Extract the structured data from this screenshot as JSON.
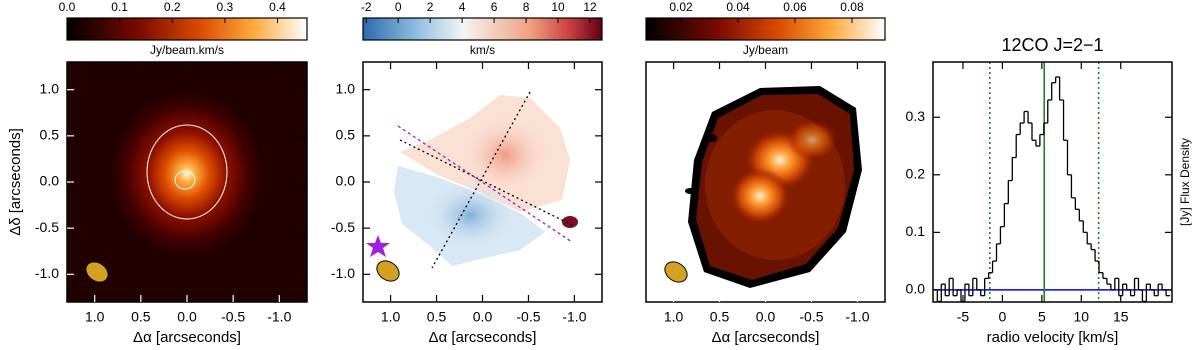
{
  "chart_data": [
    {
      "type": "image",
      "colorbar": {
        "label": "Jy/beam.km/s",
        "colormap": "heat",
        "clim": [
          0,
          0.456
        ],
        "ticks": [
          {
            "value": 0,
            "label": "0.0"
          },
          0.1,
          0.2,
          0.3,
          0.4
        ]
      },
      "xlabel": "Δα  [arcseconds]",
      "ylabel": "Δδ  [arcseconds]",
      "xlim": [
        1.3,
        -1.3
      ],
      "ylim": [
        -1.3,
        1.3
      ],
      "xticks": [
        {
          "value": 1,
          "label": "1.0"
        },
        0.5,
        {
          "value": 0,
          "label": "0.0"
        },
        -0.5,
        {
          "value": -1,
          "label": "-1.0"
        }
      ],
      "yticks": [
        {
          "value": -1,
          "label": "-1.0"
        },
        -0.5,
        {
          "value": 0,
          "label": "0.0"
        },
        0.5,
        {
          "value": 1,
          "label": "1.0"
        }
      ]
    },
    {
      "type": "image",
      "colorbar": {
        "label": "km/s",
        "colormap": "redblue",
        "clim": [
          -2.2,
          12.75
        ],
        "ticks": [
          -2,
          0,
          2,
          4,
          6,
          8,
          10,
          12
        ]
      },
      "xlabel": "Δα  [arcseconds]",
      "xlim": [
        1.3,
        -1.3
      ],
      "ylim": [
        -1.3,
        1.3
      ],
      "xticks": [
        {
          "value": 1,
          "label": "1.0"
        },
        0.5,
        {
          "value": 0,
          "label": "0.0"
        },
        -0.5,
        {
          "value": -1,
          "label": "-1.0"
        }
      ],
      "yticks": [
        {
          "value": -1,
          "label": "-1.0"
        },
        -0.5,
        {
          "value": 0,
          "label": "0.0"
        },
        0.5,
        {
          "value": 1,
          "label": "1.0"
        }
      ]
    },
    {
      "type": "image",
      "colorbar": {
        "label": "Jy/beam",
        "colormap": "heat",
        "clim": [
          0.0077,
          0.0916
        ],
        "ticks": [
          0.02,
          0.04,
          0.06,
          0.08
        ]
      },
      "xlabel": "Δα  [arcseconds]",
      "xlim": [
        1.3,
        -1.3
      ],
      "ylim": [
        -1.3,
        1.3
      ],
      "xticks": [
        {
          "value": 1,
          "label": "1.0"
        },
        0.5,
        {
          "value": 0,
          "label": "0.0"
        },
        -0.5,
        {
          "value": -1,
          "label": "-1.0"
        }
      ]
    },
    {
      "type": "step",
      "title": "12CO J=2−1",
      "xlabel": "radio velocity [km/s]",
      "ylabel": "[Jy] Flux Density",
      "xlim": [
        -8.8,
        21.5
      ],
      "ylim": [
        -0.021,
        0.396
      ],
      "xticks": [
        -5,
        0,
        5,
        10,
        15
      ],
      "yticks": [
        {
          "value": 0,
          "label": "0.0"
        },
        0.1,
        0.2,
        0.3
      ],
      "color": "#000000",
      "x": [
        -8.5,
        -8,
        -7.5,
        -7,
        -6.5,
        -6,
        -5.5,
        -5,
        -4.5,
        -4,
        -3.5,
        -3,
        -2.5,
        -2,
        -1.5,
        -1,
        -0.5,
        0,
        0.5,
        1,
        1.5,
        2,
        2.5,
        3,
        3.5,
        4,
        4.5,
        5,
        5.5,
        6,
        6.5,
        7,
        7.5,
        8,
        8.5,
        9,
        9.5,
        10,
        10.5,
        11,
        11.5,
        12,
        12.5,
        13,
        13.5,
        14,
        14.5,
        15,
        15.5,
        16,
        16.5,
        17,
        17.5,
        18,
        18.5,
        19,
        19.5,
        20,
        20.5,
        21
      ],
      "values": [
        0,
        -0.02,
        0.01,
        -0.01,
        0.02,
        -0.01,
        0,
        -0.02,
        0.01,
        -0.01,
        0.02,
        0,
        -0.01,
        0.02,
        0.03,
        0.05,
        0.08,
        0.11,
        0.15,
        0.19,
        0.23,
        0.27,
        0.29,
        0.31,
        0.29,
        0.26,
        0.25,
        0.27,
        0.29,
        0.33,
        0.36,
        0.37,
        0.33,
        0.26,
        0.2,
        0.16,
        0.14,
        0.12,
        0.1,
        0.08,
        0.07,
        0.05,
        0.03,
        0.02,
        0.01,
        0,
        0.02,
        -0.01,
        0.01,
        0,
        -0.01,
        0.02,
        0,
        -0.02,
        0.01,
        0,
        -0.01,
        0.01,
        0,
        -0.01
      ],
      "vlines": [
        {
          "x": -1.6,
          "color": "#1a7a1a",
          "dashed": true
        },
        {
          "x": 5.3,
          "color": "#1a7a1a",
          "dashed": false
        },
        {
          "x": 12.2,
          "color": "#1a7a1a",
          "dashed": true
        }
      ],
      "hline": {
        "y": 0,
        "color": "#0000ff"
      }
    }
  ]
}
